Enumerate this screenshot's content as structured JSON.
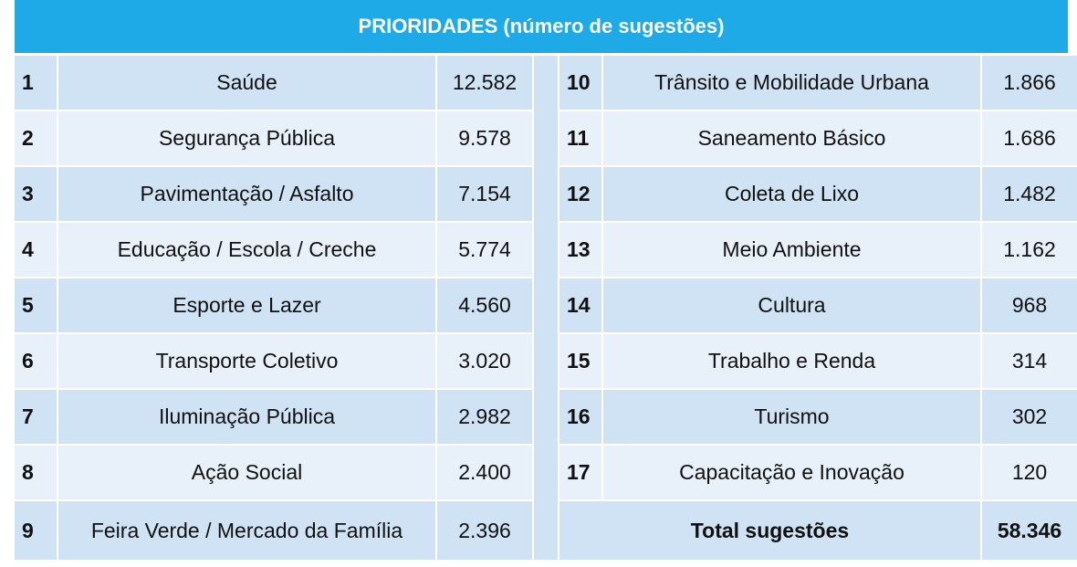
{
  "title": "PRIORIDADES (número de sugestões)",
  "left_rows": [
    {
      "rank": "1",
      "name": "Saúde",
      "value": "12.582"
    },
    {
      "rank": "2",
      "name": "Segurança Pública",
      "value": "9.578"
    },
    {
      "rank": "3",
      "name": "Pavimentação / Asfalto",
      "value": "7.154"
    },
    {
      "rank": "4",
      "name": "Educação / Escola / Creche",
      "value": "5.774"
    },
    {
      "rank": "5",
      "name": "Esporte e Lazer",
      "value": "4.560"
    },
    {
      "rank": "6",
      "name": "Transporte Coletivo",
      "value": "3.020"
    },
    {
      "rank": "7",
      "name": "Iluminação Pública",
      "value": "2.982"
    },
    {
      "rank": "8",
      "name": "Ação Social",
      "value": "2.400"
    },
    {
      "rank": "9",
      "name": "Feira Verde / Mercado da Família",
      "value": "2.396"
    }
  ],
  "right_rows": [
    {
      "rank": "10",
      "name": "Trânsito e Mobilidade Urbana",
      "value": "1.866"
    },
    {
      "rank": "11",
      "name": "Saneamento Básico",
      "value": "1.686"
    },
    {
      "rank": "12",
      "name": "Coleta de Lixo",
      "value": "1.482"
    },
    {
      "rank": "13",
      "name": "Meio Ambiente",
      "value": "1.162"
    },
    {
      "rank": "14",
      "name": "Cultura",
      "value": "968"
    },
    {
      "rank": "15",
      "name": "Trabalho e Renda",
      "value": "314"
    },
    {
      "rank": "16",
      "name": "Turismo",
      "value": "302"
    },
    {
      "rank": "17",
      "name": "Capacitação e Inovação",
      "value": "120"
    }
  ],
  "total": {
    "label": "Total sugestões",
    "value": "58.346"
  },
  "colors": {
    "header": "#1eaae6",
    "row_dark": "#cfe3f4",
    "row_light": "#e8f1fa"
  }
}
